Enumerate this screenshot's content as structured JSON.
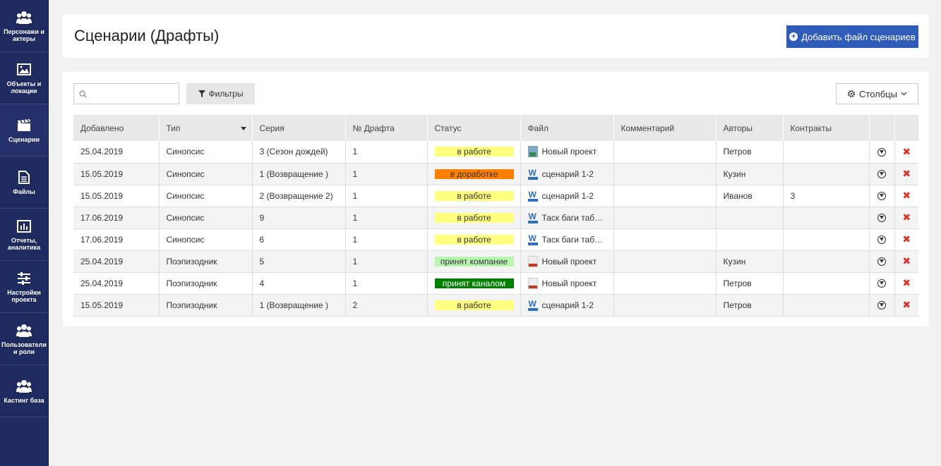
{
  "sidebar": {
    "items": [
      {
        "label": "Персонажи и актеры",
        "icon": "users-icon"
      },
      {
        "label": "Объекты и локации",
        "icon": "image-icon"
      },
      {
        "label": "Сценарии",
        "icon": "clapperboard-icon"
      },
      {
        "label": "Файлы",
        "icon": "file-icon"
      },
      {
        "label": "Отчеты, аналитика",
        "icon": "bar-chart-icon"
      },
      {
        "label": "Настройки проекта",
        "icon": "sliders-icon"
      },
      {
        "label": "Пользователи и роли",
        "icon": "users-icon"
      },
      {
        "label": "Кастинг база",
        "icon": "users-icon"
      }
    ]
  },
  "header": {
    "title": "Сценарии (Драфты)",
    "add_button": "Добавить файл сценариев"
  },
  "toolbar": {
    "search_placeholder": "",
    "filters_label": "Фильтры",
    "columns_label": "Столбцы"
  },
  "table": {
    "headers": [
      "Добавлено",
      "Тип",
      "Серия",
      "№ Драфта",
      "Статус",
      "Файл",
      "Комментарий",
      "Авторы",
      "Контракты"
    ],
    "rows": [
      {
        "added": "25.04.2019",
        "type": "Синопсис",
        "series": "3 (Сезон дождей)",
        "draft": "1",
        "status": "в работе",
        "status_color": "#ffff80",
        "status_text_color": "#333333",
        "file_icon": "image-file-icon",
        "file": "Новый проект",
        "comment": "",
        "authors": "Петров",
        "contracts": ""
      },
      {
        "added": "15.05.2019",
        "type": "Синопсис",
        "series": "1 (Возвращение )",
        "draft": "1",
        "status": "в доработке",
        "status_color": "#ff8000",
        "status_text_color": "#333333",
        "file_icon": "word-file-icon",
        "file": "сценарий 1-2",
        "comment": "",
        "authors": "Кузин",
        "contracts": ""
      },
      {
        "added": "15.05.2019",
        "type": "Синопсис",
        "series": "2 (Возвращение 2)",
        "draft": "1",
        "status": "в работе",
        "status_color": "#ffff80",
        "status_text_color": "#333333",
        "file_icon": "word-file-icon",
        "file": "сценарий 1-2",
        "comment": "",
        "authors": "Иванов",
        "contracts": "3"
      },
      {
        "added": "17.06.2019",
        "type": "Синопсис",
        "series": "9",
        "draft": "1",
        "status": "в работе",
        "status_color": "#ffff80",
        "status_text_color": "#333333",
        "file_icon": "word-file-icon",
        "file": "Таск баги таб…",
        "comment": "",
        "authors": "",
        "contracts": ""
      },
      {
        "added": "17.06.2019",
        "type": "Синопсис",
        "series": "6",
        "draft": "1",
        "status": "в работе",
        "status_color": "#ffff80",
        "status_text_color": "#333333",
        "file_icon": "word-file-icon",
        "file": "Таск баги таб…",
        "comment": "",
        "authors": "",
        "contracts": ""
      },
      {
        "added": "25.04.2019",
        "type": "Поэпизодник",
        "series": "5",
        "draft": "1",
        "status": "принят компание",
        "status_color": "#b8f5b0",
        "status_text_color": "#333333",
        "file_icon": "pdf-file-icon",
        "file": "Новый проект",
        "comment": "",
        "authors": "Кузин",
        "contracts": ""
      },
      {
        "added": "25.04.2019",
        "type": "Поэпизодник",
        "series": "4",
        "draft": "1",
        "status": "принят каналом",
        "status_color": "#008000",
        "status_text_color": "#ffffff",
        "file_icon": "pdf-file-icon",
        "file": "Новый проект",
        "comment": "",
        "authors": "Петров",
        "contracts": ""
      },
      {
        "added": "15.05.2019",
        "type": "Поэпизодник",
        "series": "1 (Возвращение )",
        "draft": "2",
        "status": "в работе",
        "status_color": "#ffff80",
        "status_text_color": "#333333",
        "file_icon": "word-file-icon",
        "file": "сценарий 1-2",
        "comment": "",
        "authors": "Петров",
        "contracts": ""
      }
    ]
  }
}
